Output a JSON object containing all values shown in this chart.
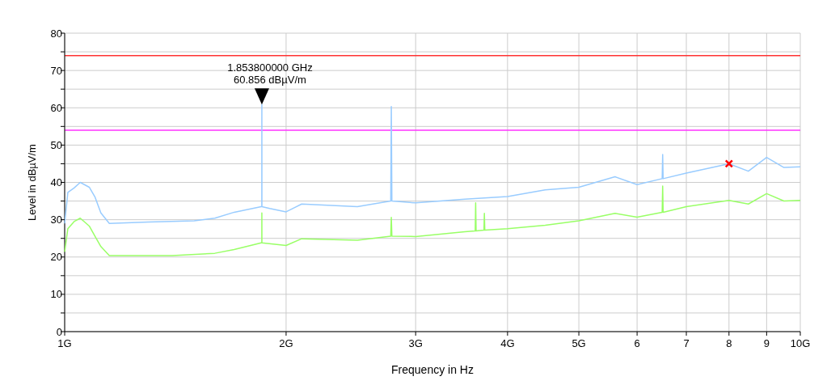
{
  "chart_data": {
    "type": "line",
    "xlabel": "Frequency in Hz",
    "ylabel": "Level in dBµV/m",
    "log": "x",
    "grid": true,
    "xlim": [
      1,
      10
    ],
    "xticks": [
      {
        "value": 1,
        "label": "1G"
      },
      {
        "value": 2,
        "label": "2G"
      },
      {
        "value": 3,
        "label": "3G"
      },
      {
        "value": 4,
        "label": "4G"
      },
      {
        "value": 5,
        "label": "5G"
      },
      6,
      7,
      8,
      9,
      {
        "value": 10,
        "label": "10G"
      }
    ],
    "ylim": [
      0,
      80
    ],
    "yticks": [
      0,
      {
        "value": 5,
        "label": null
      },
      10,
      {
        "value": 15,
        "label": null
      },
      20,
      {
        "value": 25,
        "label": null
      },
      30,
      {
        "value": 35,
        "label": null
      },
      40,
      {
        "value": 45,
        "label": null
      },
      50,
      {
        "value": 55,
        "label": null
      },
      60,
      {
        "value": 65,
        "label": null
      },
      70,
      {
        "value": 75,
        "label": null
      },
      80
    ],
    "ref_lines": [
      {
        "axis": "y",
        "value": 74,
        "color": "#ff3333"
      },
      {
        "axis": "y",
        "value": 54,
        "color": "#ff33ff"
      }
    ],
    "annotations": [
      {
        "text": "1.853800000 GHz\n60.856 dBµV/m",
        "x": 1.8538,
        "y": 60.856
      }
    ],
    "series": [
      {
        "color": "#99ccff",
        "x": [
          1,
          1.01,
          1.03,
          1.05,
          1.08,
          1.1,
          1.12,
          1.15,
          1.3,
          1.5,
          1.6,
          1.7,
          1.85,
          1.8535,
          1.8538,
          1.8541,
          1.9,
          2,
          2.1,
          2.5,
          2.775,
          2.78,
          2.785,
          3,
          3.5,
          4,
          4.5,
          5,
          5.6,
          6,
          6.49,
          6.5,
          6.51,
          7,
          8,
          8.5,
          9,
          9.5,
          10
        ],
        "values": [
          29,
          37.3,
          38.5,
          40,
          38.7,
          36,
          31.8,
          29,
          29.4,
          29.7,
          30.4,
          32,
          33.5,
          33.5,
          60.856,
          33.5,
          33,
          32.1,
          34.2,
          33.5,
          35,
          60.3,
          35,
          34.5,
          35.5,
          36.2,
          38,
          38.7,
          41.5,
          39.4,
          41,
          47.5,
          41,
          42.5,
          45,
          43,
          46.7,
          44,
          44.2
        ]
      },
      {
        "color": "#99ff66",
        "x": [
          1,
          1.01,
          1.03,
          1.05,
          1.08,
          1.1,
          1.12,
          1.15,
          1.4,
          1.6,
          1.7,
          1.85,
          1.8535,
          1.8538,
          1.8541,
          2,
          2.1,
          2.5,
          2.775,
          2.78,
          2.785,
          3,
          3.5,
          3.615,
          3.62,
          3.625,
          3.715,
          3.72,
          3.725,
          4,
          4.5,
          5,
          5.6,
          6,
          6.49,
          6.5,
          6.51,
          7,
          8,
          8.5,
          9,
          9.5,
          10
        ],
        "values": [
          21.4,
          27.6,
          29.5,
          30.4,
          28.3,
          25.5,
          22.8,
          20.4,
          20.4,
          21,
          22,
          23.8,
          23.8,
          31.8,
          23.8,
          23.1,
          24.9,
          24.5,
          25.6,
          30.6,
          25.6,
          25.5,
          26.8,
          27,
          34.5,
          27,
          27.2,
          31.7,
          27.2,
          27.6,
          28.5,
          29.7,
          31.7,
          30.7,
          32,
          39,
          32,
          33.5,
          35.2,
          34.2,
          37,
          35,
          35.2
        ]
      },
      {
        "type": "scatter",
        "marker": "cross",
        "color": "#ff0000",
        "x": [
          8
        ],
        "values": [
          45
        ]
      }
    ]
  }
}
